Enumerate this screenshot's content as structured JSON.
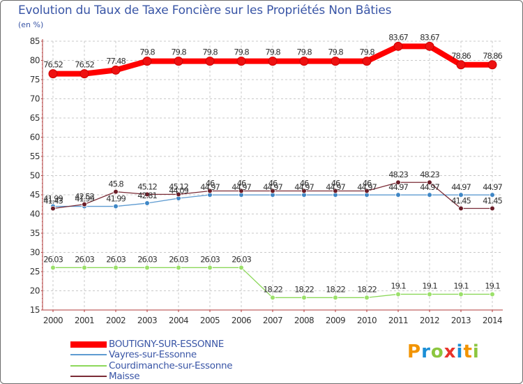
{
  "title": "Evolution du Taux de Taxe Foncière sur les Propriétés Non Bâties",
  "unit_label": "(en %)",
  "logo": {
    "letters": [
      "P",
      "r",
      "o",
      "x",
      "i",
      "t",
      "i"
    ],
    "colors": [
      "#f29400",
      "#1b8fd6",
      "#8cc63f",
      "#e8332a",
      "#1b8fd6",
      "#f29400",
      "#8cc63f"
    ]
  },
  "chart_data": {
    "type": "line",
    "title": "Evolution du Taux de Taxe Foncière sur les Propriétés Non Bâties",
    "ylabel": "(en %)",
    "xlabel": "",
    "ylim": [
      15,
      85
    ],
    "yticks": [
      15,
      20,
      25,
      30,
      35,
      40,
      45,
      50,
      55,
      60,
      65,
      70,
      75,
      80,
      85
    ],
    "grid": true,
    "x": [
      "2000",
      "2001",
      "2002",
      "2003",
      "2004",
      "2005",
      "2006",
      "2007",
      "2008",
      "2009",
      "2010",
      "2011",
      "2012",
      "2013",
      "2014"
    ],
    "series": [
      {
        "name": "BOUTIGNY-SUR-ESSONNE",
        "color": "#ff0000",
        "marker": "#ee1111",
        "bold": true,
        "values": [
          76.52,
          76.52,
          77.48,
          79.8,
          79.8,
          79.8,
          79.8,
          79.8,
          79.8,
          79.8,
          79.8,
          83.67,
          83.67,
          78.86,
          78.86
        ],
        "labels": [
          "76.52",
          "76.52",
          "77.48",
          "79.8",
          "79.8",
          "79.8",
          "79.8",
          "79.8",
          "79.8",
          "79.8",
          "79.8",
          "83.67",
          "83.67",
          "78.86",
          "78.86"
        ]
      },
      {
        "name": "Vayres-sur-Essonne",
        "color": "#5e9bd1",
        "marker": "#3f87c6",
        "values": [
          41.99,
          41.99,
          41.99,
          42.81,
          44.09,
          44.97,
          44.97,
          44.97,
          44.97,
          44.97,
          44.97,
          44.97,
          44.97,
          44.97,
          44.97
        ],
        "labels": [
          "41.99",
          "41.99",
          "41.99",
          "42.81",
          "44.09",
          "44.97",
          "44.97",
          "44.97",
          "44.97",
          "44.97",
          "44.97",
          "44.97",
          "44.97",
          "44.97",
          "44.97"
        ]
      },
      {
        "name": "Courdimanche-sur-Essonne",
        "color": "#8cd85a",
        "marker": "#9be06a",
        "values": [
          26.03,
          26.03,
          26.03,
          26.03,
          26.03,
          26.03,
          26.03,
          18.22,
          18.22,
          18.22,
          18.22,
          19.1,
          19.1,
          19.1,
          19.1
        ],
        "labels": [
          "26.03",
          "26.03",
          "26.03",
          "26.03",
          "26.03",
          "26.03",
          "26.03",
          "18.22",
          "18.22",
          "18.22",
          "18.22",
          "19.1",
          "19.1",
          "19.1",
          "19.1"
        ]
      },
      {
        "name": "Maisse",
        "color": "#7a2b36",
        "marker": "#6b1d28",
        "values": [
          41.43,
          42.52,
          45.8,
          45.12,
          45.12,
          46,
          46,
          46,
          46,
          46,
          46,
          48.23,
          48.23,
          41.45,
          41.45
        ],
        "labels": [
          "41.43",
          "42.52",
          "45.8",
          "45.12",
          "45.12",
          "46",
          "46",
          "46",
          "46",
          "46",
          "46",
          "48.23",
          "48.23",
          "41.45",
          "41.45"
        ]
      }
    ],
    "legend_position": "bottom-left"
  }
}
